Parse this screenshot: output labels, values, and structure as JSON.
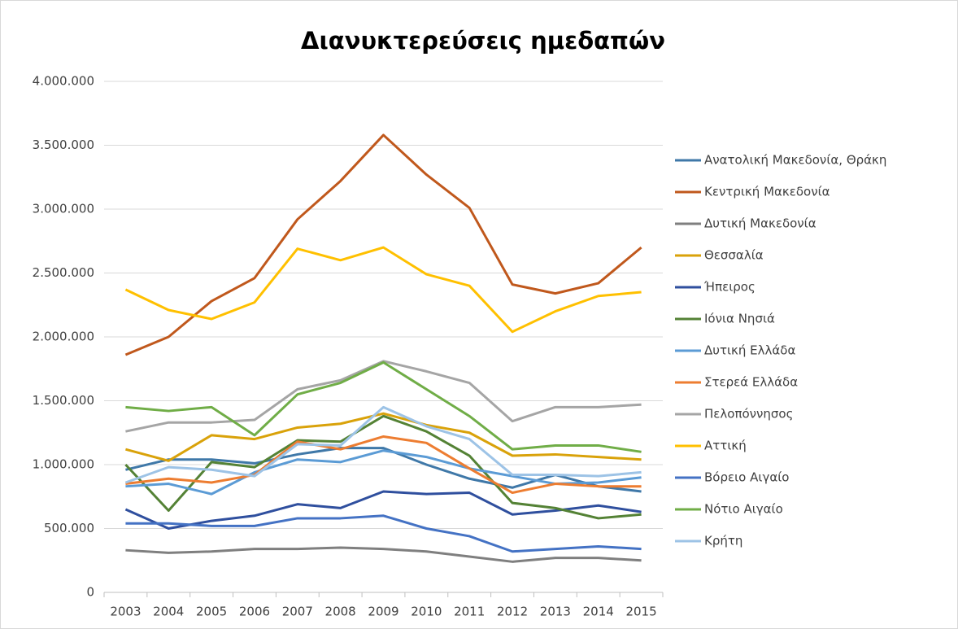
{
  "chart_data": {
    "type": "line",
    "title": "Διανυκτερεύσεις ημεδαπών",
    "categories": [
      "2003",
      "2004",
      "2005",
      "2006",
      "2007",
      "2008",
      "2009",
      "2010",
      "2011",
      "2012",
      "2013",
      "2014",
      "2015"
    ],
    "ylim": [
      0,
      4000000
    ],
    "yticks": [
      0,
      {
        "value": 500000,
        "label": "500.000"
      },
      {
        "value": 1000000,
        "label": "1.000.000"
      },
      {
        "value": 1500000,
        "label": "1.500.000"
      },
      {
        "value": 2000000,
        "label": "2.000.000"
      },
      {
        "value": 2500000,
        "label": "2.500.000"
      },
      {
        "value": 3000000,
        "label": "3.000.000"
      },
      {
        "value": 3500000,
        "label": "3.500.000"
      },
      {
        "value": 4000000,
        "label": "4.000.000"
      }
    ],
    "grid": true,
    "legend": "right",
    "series": [
      {
        "name": "Ανατολική Μακεδονία, Θράκη",
        "color": "#3f78a8",
        "values": [
          960000,
          1040000,
          1040000,
          1010000,
          1080000,
          1130000,
          1130000,
          1000000,
          890000,
          820000,
          920000,
          830000,
          790000
        ]
      },
      {
        "name": "Κεντρική Μακεδονία",
        "color": "#c0581c",
        "values": [
          1860000,
          2000000,
          2280000,
          2460000,
          2920000,
          3220000,
          3580000,
          3270000,
          3010000,
          2410000,
          2340000,
          2420000,
          2700000
        ]
      },
      {
        "name": "Δυτική Μακεδονία",
        "color": "#7f7f7f",
        "values": [
          330000,
          310000,
          320000,
          340000,
          340000,
          350000,
          340000,
          320000,
          280000,
          240000,
          270000,
          270000,
          250000
        ]
      },
      {
        "name": "Θεσσαλία",
        "color": "#d9a20a",
        "values": [
          1120000,
          1030000,
          1230000,
          1200000,
          1290000,
          1320000,
          1400000,
          1310000,
          1250000,
          1070000,
          1080000,
          1060000,
          1040000
        ]
      },
      {
        "name": "Ήπειρος",
        "color": "#2f4f9e",
        "values": [
          650000,
          500000,
          560000,
          600000,
          690000,
          660000,
          790000,
          770000,
          780000,
          610000,
          640000,
          680000,
          630000
        ]
      },
      {
        "name": "Ιόνια Νησιά",
        "color": "#548235",
        "values": [
          1000000,
          640000,
          1020000,
          980000,
          1190000,
          1180000,
          1380000,
          1260000,
          1070000,
          700000,
          660000,
          580000,
          610000
        ]
      },
      {
        "name": "Δυτική Ελλάδα",
        "color": "#5b9bd5",
        "values": [
          830000,
          850000,
          770000,
          940000,
          1040000,
          1020000,
          1110000,
          1060000,
          970000,
          910000,
          850000,
          860000,
          900000
        ]
      },
      {
        "name": "Στερεά Ελλάδα",
        "color": "#ed7d31",
        "values": [
          850000,
          890000,
          860000,
          920000,
          1180000,
          1120000,
          1220000,
          1170000,
          970000,
          780000,
          850000,
          830000,
          830000
        ]
      },
      {
        "name": "Πελοπόννησος",
        "color": "#a5a5a5",
        "values": [
          1260000,
          1330000,
          1330000,
          1350000,
          1590000,
          1660000,
          1810000,
          1730000,
          1640000,
          1340000,
          1450000,
          1450000,
          1470000
        ]
      },
      {
        "name": "Αττική",
        "color": "#ffc000",
        "values": [
          2370000,
          2210000,
          2140000,
          2270000,
          2690000,
          2600000,
          2700000,
          2490000,
          2400000,
          2040000,
          2200000,
          2320000,
          2350000
        ]
      },
      {
        "name": "Βόρειο Αιγαίο",
        "color": "#4472c4",
        "values": [
          540000,
          540000,
          520000,
          520000,
          580000,
          580000,
          600000,
          500000,
          440000,
          320000,
          340000,
          360000,
          340000
        ]
      },
      {
        "name": "Νότιο Αιγαίο",
        "color": "#70ad47",
        "values": [
          1450000,
          1420000,
          1450000,
          1230000,
          1550000,
          1640000,
          1800000,
          1590000,
          1380000,
          1120000,
          1150000,
          1150000,
          1100000
        ]
      },
      {
        "name": "Κρήτη",
        "color": "#9dc3e6",
        "values": [
          860000,
          980000,
          960000,
          910000,
          1160000,
          1150000,
          1450000,
          1300000,
          1200000,
          920000,
          920000,
          910000,
          940000
        ]
      }
    ]
  }
}
